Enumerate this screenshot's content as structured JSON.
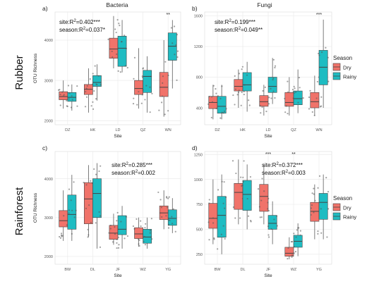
{
  "chart_data": {
    "type": "boxplot-grid",
    "colors": {
      "dry": "#f0736a",
      "rainy": "#1fbcc2",
      "panel_bg": "#ffffff",
      "grid": "#ebebeb",
      "outline": "#444444"
    },
    "column_titles": [
      "Bacteria",
      "Fungi"
    ],
    "row_labels": [
      "Rubber",
      "Rainforest"
    ],
    "legend": {
      "title": "Season",
      "items": [
        "Dry",
        "Rainy"
      ]
    },
    "panels": [
      {
        "id": "a",
        "tag": "a)",
        "ylabel": "OTU Richness",
        "xlabel": "Site",
        "ylim": [
          1900,
          4700
        ],
        "yticks": [
          2000,
          3000,
          4000
        ],
        "stats": [
          "site:R²=0.402***",
          "season:R²=0.037*"
        ],
        "categories": [
          "DZ",
          "HK",
          "LD",
          "QZ",
          "WN"
        ],
        "sig": [
          {
            "site": "WN",
            "text": "**"
          }
        ],
        "series": [
          {
            "name": "Dry",
            "boxes": [
              {
                "min": 2300,
                "q1": 2520,
                "median": 2600,
                "q3": 2720,
                "max": 3000
              },
              {
                "min": 2200,
                "q1": 2650,
                "median": 2780,
                "q3": 2900,
                "max": 3300
              },
              {
                "min": 3300,
                "q1": 3550,
                "median": 3780,
                "q3": 4050,
                "max": 4600
              },
              {
                "min": 2300,
                "q1": 2650,
                "median": 2800,
                "q3": 3000,
                "max": 3800
              },
              {
                "min": 2100,
                "q1": 2600,
                "median": 2830,
                "q3": 3200,
                "max": 4000
              }
            ]
          },
          {
            "name": "Rainy",
            "boxes": [
              {
                "min": 2250,
                "q1": 2480,
                "median": 2580,
                "q3": 2700,
                "max": 2900
              },
              {
                "min": 2500,
                "q1": 2850,
                "median": 2950,
                "q3": 3120,
                "max": 3400
              },
              {
                "min": 3200,
                "q1": 3350,
                "median": 3800,
                "q3": 4100,
                "max": 4500
              },
              {
                "min": 2200,
                "q1": 2700,
                "median": 3100,
                "q3": 3250,
                "max": 3600
              },
              {
                "min": 2800,
                "q1": 3500,
                "median": 3850,
                "q3": 4180,
                "max": 4500
              }
            ]
          }
        ]
      },
      {
        "id": "b",
        "tag": "b)",
        "ylabel": "",
        "xlabel": "Site",
        "ylim": [
          180,
          1650
        ],
        "yticks": [
          400,
          800,
          1200,
          1600
        ],
        "stats": [
          "site:R²=0.199***",
          "season:R²=0.049**"
        ],
        "categories": [
          "DZ",
          "HK",
          "LD",
          "QZ",
          "WN"
        ],
        "sig": [
          {
            "site": "WN",
            "text": "***"
          }
        ],
        "series": [
          {
            "name": "Dry",
            "boxes": [
              {
                "min": 250,
                "q1": 390,
                "median": 470,
                "q3": 550,
                "max": 700
              },
              {
                "min": 400,
                "q1": 620,
                "median": 680,
                "q3": 770,
                "max": 900
              },
              {
                "min": 300,
                "q1": 420,
                "median": 480,
                "q3": 560,
                "max": 700
              },
              {
                "min": 300,
                "q1": 420,
                "median": 470,
                "q3": 600,
                "max": 800
              },
              {
                "min": 300,
                "q1": 400,
                "median": 480,
                "q3": 600,
                "max": 820
              }
            ]
          },
          {
            "name": "Rainy",
            "boxes": [
              {
                "min": 250,
                "q1": 330,
                "median": 420,
                "q3": 550,
                "max": 700
              },
              {
                "min": 350,
                "q1": 620,
                "median": 700,
                "q3": 860,
                "max": 1000
              },
              {
                "min": 450,
                "q1": 600,
                "median": 680,
                "q3": 800,
                "max": 1050
              },
              {
                "min": 330,
                "q1": 440,
                "median": 520,
                "q3": 620,
                "max": 900
              },
              {
                "min": 400,
                "q1": 700,
                "median": 930,
                "q3": 1150,
                "max": 1550
              }
            ]
          }
        ]
      },
      {
        "id": "c",
        "tag": "c)",
        "ylabel": "OTU Richness",
        "xlabel": "Site",
        "ylim": [
          1800,
          4700
        ],
        "yticks": [
          2000,
          3000,
          4000
        ],
        "stats": [
          "site:R²=0.285***",
          "season:R²=0.002"
        ],
        "categories": [
          "BW",
          "DL",
          "JF",
          "WZ",
          "YG"
        ],
        "sig": [],
        "series": [
          {
            "name": "Dry",
            "boxes": [
              {
                "min": 2400,
                "q1": 2760,
                "median": 2920,
                "q3": 3180,
                "max": 3700
              },
              {
                "min": 2500,
                "q1": 2840,
                "median": 3480,
                "q3": 3900,
                "max": 4350
              },
              {
                "min": 2300,
                "q1": 2440,
                "median": 2600,
                "q3": 2800,
                "max": 3100
              },
              {
                "min": 2250,
                "q1": 2460,
                "median": 2580,
                "q3": 2740,
                "max": 3000
              },
              {
                "min": 2700,
                "q1": 2950,
                "median": 3120,
                "q3": 3300,
                "max": 3700
              }
            ]
          },
          {
            "name": "Rainy",
            "boxes": [
              {
                "min": 2400,
                "q1": 2700,
                "median": 3080,
                "q3": 3580,
                "max": 4100
              },
              {
                "min": 2200,
                "q1": 3000,
                "median": 3620,
                "q3": 4000,
                "max": 4400
              },
              {
                "min": 2200,
                "q1": 2560,
                "median": 2700,
                "q3": 3050,
                "max": 3300
              },
              {
                "min": 2200,
                "q1": 2340,
                "median": 2500,
                "q3": 2700,
                "max": 3000
              },
              {
                "min": 2600,
                "q1": 2800,
                "median": 2980,
                "q3": 3200,
                "max": 3500
              }
            ]
          }
        ]
      },
      {
        "id": "d",
        "tag": "d)",
        "ylabel": "",
        "xlabel": "Site",
        "ylim": [
          150,
          1280
        ],
        "yticks": [
          250,
          500,
          750,
          1000,
          1250
        ],
        "stats": [
          "site:R²=0.372***",
          "season:R²=0.003"
        ],
        "categories": [
          "BW",
          "DL",
          "JF",
          "WZ",
          "YG"
        ],
        "sig": [
          {
            "site": "JF",
            "text": "***"
          },
          {
            "site": "WZ",
            "text": "**"
          }
        ],
        "series": [
          {
            "name": "Dry",
            "boxes": [
              {
                "min": 350,
                "q1": 510,
                "median": 610,
                "q3": 760,
                "max": 1000
              },
              {
                "min": 550,
                "q1": 700,
                "median": 870,
                "q3": 960,
                "max": 1200
              },
              {
                "min": 550,
                "q1": 680,
                "median": 830,
                "q3": 950,
                "max": 1150
              },
              {
                "min": 200,
                "q1": 230,
                "median": 260,
                "q3": 320,
                "max": 420
              },
              {
                "min": 400,
                "q1": 580,
                "median": 680,
                "q3": 770,
                "max": 950
              }
            ]
          },
          {
            "name": "Rainy",
            "boxes": [
              {
                "min": 250,
                "q1": 420,
                "median": 640,
                "q3": 830,
                "max": 1050
              },
              {
                "min": 500,
                "q1": 690,
                "median": 850,
                "q3": 990,
                "max": 1150
              },
              {
                "min": 350,
                "q1": 500,
                "median": 560,
                "q3": 640,
                "max": 780
              },
              {
                "min": 230,
                "q1": 320,
                "median": 380,
                "q3": 440,
                "max": 560
              },
              {
                "min": 400,
                "q1": 600,
                "median": 770,
                "q3": 860,
                "max": 1050
              }
            ]
          }
        ]
      }
    ]
  }
}
